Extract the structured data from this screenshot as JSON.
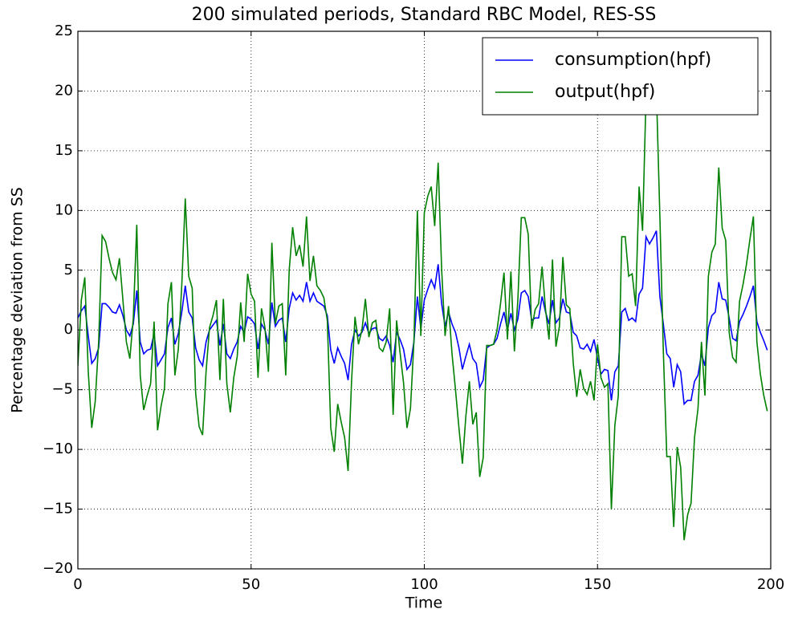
{
  "chart_data": {
    "type": "line",
    "title": "200 simulated periods, Standard RBC Model, RES-SS",
    "xlabel": "Time",
    "ylabel": "Percentage deviation from SS",
    "x": [
      0,
      1,
      2,
      3,
      4,
      5,
      6,
      7,
      8,
      9,
      10,
      11,
      12,
      13,
      14,
      15,
      16,
      17,
      18,
      19,
      20,
      21,
      22,
      23,
      24,
      25,
      26,
      27,
      28,
      29,
      30,
      31,
      32,
      33,
      34,
      35,
      36,
      37,
      38,
      39,
      40,
      41,
      42,
      43,
      44,
      45,
      46,
      47,
      48,
      49,
      50,
      51,
      52,
      53,
      54,
      55,
      56,
      57,
      58,
      59,
      60,
      61,
      62,
      63,
      64,
      65,
      66,
      67,
      68,
      69,
      70,
      71,
      72,
      73,
      74,
      75,
      76,
      77,
      78,
      79,
      80,
      81,
      82,
      83,
      84,
      85,
      86,
      87,
      88,
      89,
      90,
      91,
      92,
      93,
      94,
      95,
      96,
      97,
      98,
      99,
      100,
      101,
      102,
      103,
      104,
      105,
      106,
      107,
      108,
      109,
      110,
      111,
      112,
      113,
      114,
      115,
      116,
      117,
      118,
      119,
      120,
      121,
      122,
      123,
      124,
      125,
      126,
      127,
      128,
      129,
      130,
      131,
      132,
      133,
      134,
      135,
      136,
      137,
      138,
      139,
      140,
      141,
      142,
      143,
      144,
      145,
      146,
      147,
      148,
      149,
      150,
      151,
      152,
      153,
      154,
      155,
      156,
      157,
      158,
      159,
      160,
      161,
      162,
      163,
      164,
      165,
      166,
      167,
      168,
      169,
      170,
      171,
      172,
      173,
      174,
      175,
      176,
      177,
      178,
      179,
      180,
      181,
      182,
      183,
      184,
      185,
      186,
      187,
      188,
      189,
      190,
      191,
      192,
      193,
      194,
      195,
      196,
      197,
      198,
      199
    ],
    "series": [
      {
        "name": "consumption(hpf)",
        "color": "#0000ff",
        "values": [
          1.0,
          1.6,
          2.0,
          -0.5,
          -2.8,
          -2.4,
          -1.5,
          2.2,
          2.2,
          1.9,
          1.5,
          1.4,
          2.1,
          1.2,
          0,
          -0.5,
          0.5,
          3.3,
          -1.0,
          -2.0,
          -1.7,
          -1.6,
          -0.3,
          -3.0,
          -2.5,
          -2.0,
          0.2,
          1.0,
          -1.2,
          -0.3,
          1.5,
          3.7,
          1.5,
          1.0,
          -1.5,
          -2.5,
          -3.0,
          -1.0,
          0,
          0.4,
          0.8,
          -1.3,
          0.5,
          -2.0,
          -2.4,
          -1.6,
          -1.0,
          0.3,
          -0.2,
          1.1,
          0.9,
          0.5,
          -1.6,
          0.5,
          0,
          -1.2,
          2.3,
          0.3,
          0.8,
          1.0,
          -1.0,
          1.8,
          3.1,
          2.5,
          2.9,
          2.4,
          4.0,
          2.4,
          3.1,
          2.4,
          2.2,
          2.0,
          1.2,
          -1.7,
          -2.8,
          -1.5,
          -2.2,
          -2.8,
          -4.2,
          -1.2,
          0,
          -0.5,
          -0.2,
          0.6,
          -0.3,
          0.1,
          0.2,
          -0.7,
          -0.9,
          -0.5,
          -1.3,
          -2.7,
          -0.2,
          -0.8,
          -1.6,
          -3.3,
          -2.9,
          -1.0,
          2.8,
          0.1,
          2.5,
          3.4,
          4.2,
          3.5,
          5.5,
          2.2,
          0.3,
          1.5,
          0.5,
          -0.2,
          -1.5,
          -3.3,
          -2.2,
          -1.2,
          -2.4,
          -2.8,
          -4.8,
          -4.2,
          -1.5,
          -1.3,
          -1.2,
          -0.7,
          0.5,
          1.5,
          0,
          1.4,
          0,
          0.9,
          3.1,
          3.3,
          2.8,
          0.8,
          1.0,
          1.0,
          2.8,
          1.5,
          0.5,
          2.5,
          0.6,
          1.0,
          2.6,
          1.5,
          1.4,
          -0.2,
          -0.5,
          -1.5,
          -1.6,
          -1.2,
          -1.8,
          -0.8,
          -2.4,
          -3.7,
          -3.3,
          -3.4,
          -5.9,
          -3.5,
          -3.0,
          1.5,
          1.8,
          0.8,
          1.0,
          0.7,
          3.0,
          3.5,
          7.8,
          7.2,
          7.7,
          8.3,
          2.8,
          0.5,
          -2.0,
          -2.4,
          -4.8,
          -2.9,
          -3.5,
          -6.2,
          -5.9,
          -5.9,
          -4.3,
          -3.8,
          -2.0,
          -3.0,
          0.2,
          1.2,
          1.5,
          4.0,
          2.6,
          2.5,
          1.0,
          -0.7,
          -0.9,
          0.7,
          1.3,
          2.0,
          2.8,
          3.7,
          0.7,
          -0.2,
          -0.9,
          -1.7
        ]
      },
      {
        "name": "output(hpf)",
        "color": "#008000",
        "values": [
          -3.0,
          2.5,
          4.4,
          -3.5,
          -8.2,
          -6.0,
          -1.0,
          7.9,
          7.4,
          6.0,
          4.8,
          4.2,
          6.0,
          2.5,
          -1.0,
          -2.4,
          1.0,
          8.8,
          -3.8,
          -6.7,
          -5.5,
          -4.5,
          0.7,
          -8.4,
          -6.4,
          -4.9,
          2.2,
          4.0,
          -3.8,
          -1.6,
          3.8,
          11.0,
          4.5,
          3.5,
          -5.3,
          -8.1,
          -8.8,
          -3.5,
          0.2,
          1.2,
          2.5,
          -4.2,
          2.6,
          -4.5,
          -6.9,
          -4.0,
          -2.2,
          2.3,
          -1.0,
          4.7,
          3.0,
          2.4,
          -4.0,
          1.8,
          0.2,
          -3.5,
          7.3,
          0.5,
          2.0,
          2.2,
          -3.8,
          5.0,
          8.6,
          6.2,
          7.1,
          5.3,
          9.5,
          4.1,
          6.2,
          3.7,
          3.3,
          2.7,
          0.8,
          -8.2,
          -10.2,
          -6.2,
          -7.7,
          -9.0,
          -11.8,
          -4.3,
          1.1,
          -1.2,
          0,
          2.6,
          -0.6,
          0.6,
          0.8,
          -1.5,
          -1.8,
          -1.0,
          1.8,
          -7.1,
          0.8,
          -1.9,
          -4.4,
          -8.2,
          -6.6,
          -1.0,
          10.0,
          -0.5,
          9.8,
          11.2,
          12.0,
          8.7,
          14.0,
          5.1,
          -0.5,
          2.0,
          -2.0,
          -5.0,
          -8.2,
          -11.2,
          -7.2,
          -4.3,
          -7.9,
          -6.9,
          -12.3,
          -10.7,
          -1.3,
          -1.3,
          -1.2,
          0,
          2.2,
          4.8,
          -0.8,
          4.9,
          -1.8,
          2.5,
          9.4,
          9.4,
          8.0,
          0.1,
          1.7,
          2.2,
          5.3,
          1.7,
          -0.8,
          5.9,
          -1.4,
          0.3,
          6.1,
          2.1,
          1.8,
          -2.8,
          -5.6,
          -3.3,
          -4.9,
          -5.4,
          -4.3,
          -5.9,
          -1.2,
          -4.0,
          -4.8,
          -4.5,
          -15.0,
          -8.0,
          -5.5,
          7.8,
          7.8,
          4.5,
          4.7,
          2.0,
          12.0,
          8.3,
          19.5,
          19.0,
          20.0,
          20.0,
          9.5,
          -1.8,
          -10.6,
          -10.6,
          -16.5,
          -9.8,
          -11.5,
          -17.6,
          -15.5,
          -14.5,
          -9.0,
          -6.6,
          -1.0,
          -5.5,
          4.5,
          6.5,
          7.2,
          13.6,
          8.5,
          7.5,
          -0.2,
          -2.3,
          -2.7,
          2.4,
          3.8,
          5.5,
          7.6,
          9.5,
          -1.0,
          -3.7,
          -5.5,
          -6.8
        ]
      }
    ],
    "xlim": [
      0,
      200
    ],
    "xticks": [
      0,
      50,
      100,
      150,
      200
    ],
    "ylim": [
      -20,
      25
    ],
    "yticks": [
      {
        "value": -20,
        "label": "−20"
      },
      {
        "value": -15,
        "label": "−15"
      },
      {
        "value": -10,
        "label": "−10"
      },
      {
        "value": -5,
        "label": "−5"
      },
      0,
      5,
      10,
      15,
      20,
      25
    ],
    "grid": true,
    "legend": "upper right"
  }
}
